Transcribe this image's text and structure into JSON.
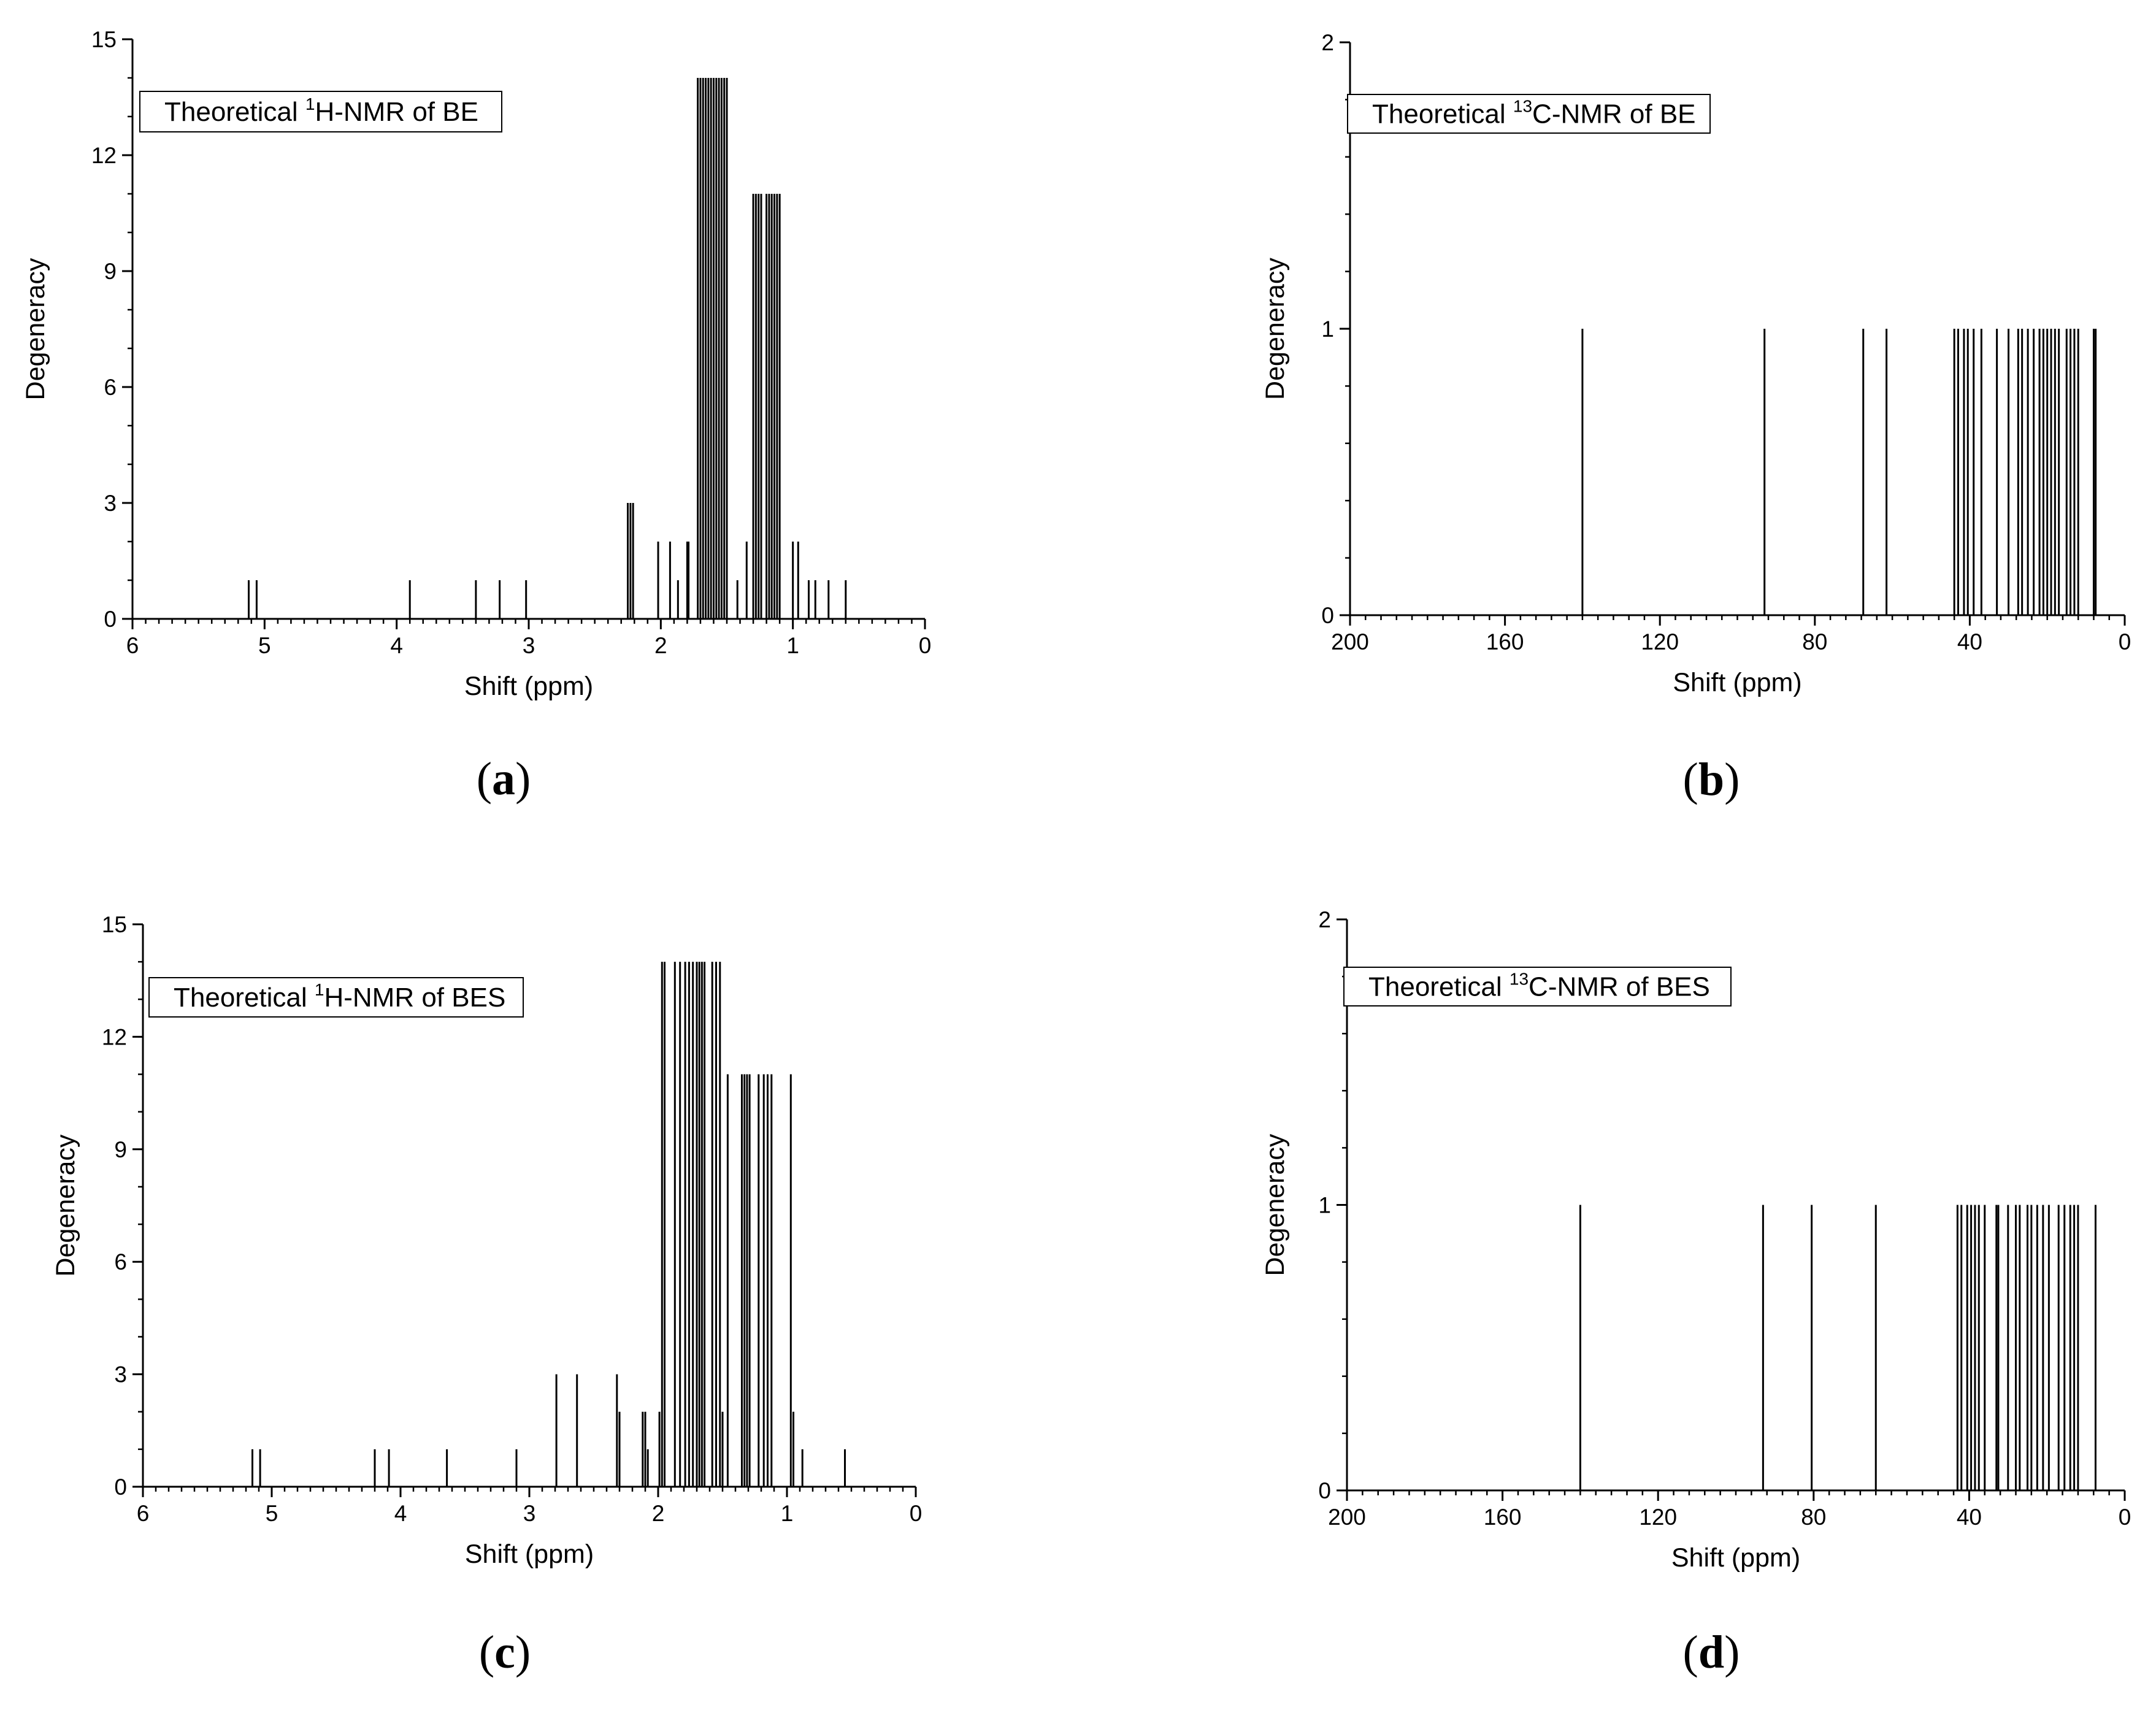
{
  "chart_data": [
    {
      "type": "bar",
      "panel_label": "(a)",
      "legend": {
        "prefix": "Theoretical ",
        "sup": "1",
        "suffix": "H-NMR of BE"
      },
      "xlabel": "Shift (ppm)",
      "ylabel": "Degeneracy",
      "xlim": [
        6,
        0
      ],
      "ylim": [
        0,
        15
      ],
      "xticks": [
        6,
        5,
        4,
        3,
        2,
        1,
        0
      ],
      "yticks": [
        0,
        3,
        6,
        9,
        12,
        15
      ],
      "x_minor_step": 0.1,
      "y_minor_step": 1,
      "grid": false,
      "peaks": [
        {
          "x": 5.12,
          "y": 1
        },
        {
          "x": 5.06,
          "y": 1
        },
        {
          "x": 3.9,
          "y": 1
        },
        {
          "x": 3.4,
          "y": 1
        },
        {
          "x": 3.22,
          "y": 1
        },
        {
          "x": 3.02,
          "y": 1
        },
        {
          "x": 2.25,
          "y": 3
        },
        {
          "x": 2.23,
          "y": 3
        },
        {
          "x": 2.21,
          "y": 3
        },
        {
          "x": 2.02,
          "y": 2
        },
        {
          "x": 1.93,
          "y": 2
        },
        {
          "x": 1.87,
          "y": 1
        },
        {
          "x": 1.8,
          "y": 2
        },
        {
          "x": 1.79,
          "y": 2
        },
        {
          "x": 1.72,
          "y": 14
        },
        {
          "x": 1.7,
          "y": 14
        },
        {
          "x": 1.68,
          "y": 14
        },
        {
          "x": 1.66,
          "y": 14
        },
        {
          "x": 1.64,
          "y": 14
        },
        {
          "x": 1.62,
          "y": 14
        },
        {
          "x": 1.6,
          "y": 14
        },
        {
          "x": 1.58,
          "y": 14
        },
        {
          "x": 1.56,
          "y": 14
        },
        {
          "x": 1.54,
          "y": 14
        },
        {
          "x": 1.52,
          "y": 14
        },
        {
          "x": 1.5,
          "y": 14
        },
        {
          "x": 1.42,
          "y": 1
        },
        {
          "x": 1.35,
          "y": 2
        },
        {
          "x": 1.3,
          "y": 11
        },
        {
          "x": 1.28,
          "y": 11
        },
        {
          "x": 1.26,
          "y": 11
        },
        {
          "x": 1.24,
          "y": 11
        },
        {
          "x": 1.2,
          "y": 11
        },
        {
          "x": 1.18,
          "y": 11
        },
        {
          "x": 1.16,
          "y": 11
        },
        {
          "x": 1.14,
          "y": 11
        },
        {
          "x": 1.12,
          "y": 11
        },
        {
          "x": 1.1,
          "y": 11
        },
        {
          "x": 1.0,
          "y": 2
        },
        {
          "x": 0.96,
          "y": 2
        },
        {
          "x": 0.88,
          "y": 1
        },
        {
          "x": 0.83,
          "y": 1
        },
        {
          "x": 0.73,
          "y": 1
        },
        {
          "x": 0.6,
          "y": 1
        }
      ]
    },
    {
      "type": "bar",
      "panel_label": "(b)",
      "legend": {
        "prefix": "Theoretical ",
        "sup": "13",
        "suffix": "C-NMR of BE"
      },
      "xlabel": "Shift (ppm)",
      "ylabel": "Degeneracy",
      "xlim": [
        200,
        0
      ],
      "ylim": [
        0,
        2
      ],
      "xticks": [
        200,
        160,
        120,
        80,
        40,
        0
      ],
      "yticks": [
        0,
        1,
        2
      ],
      "x_minor_step": 4,
      "y_minor_step": 0.2,
      "grid": false,
      "peaks": [
        {
          "x": 140,
          "y": 1
        },
        {
          "x": 93,
          "y": 1
        },
        {
          "x": 67.5,
          "y": 1
        },
        {
          "x": 61.5,
          "y": 1
        },
        {
          "x": 44,
          "y": 1
        },
        {
          "x": 43,
          "y": 1
        },
        {
          "x": 41.5,
          "y": 1
        },
        {
          "x": 40.5,
          "y": 1
        },
        {
          "x": 39,
          "y": 1
        },
        {
          "x": 37,
          "y": 1
        },
        {
          "x": 33,
          "y": 1
        },
        {
          "x": 30,
          "y": 1
        },
        {
          "x": 27.5,
          "y": 1
        },
        {
          "x": 26.5,
          "y": 1
        },
        {
          "x": 25,
          "y": 1
        },
        {
          "x": 23.5,
          "y": 1
        },
        {
          "x": 22,
          "y": 1
        },
        {
          "x": 21,
          "y": 1
        },
        {
          "x": 20,
          "y": 1
        },
        {
          "x": 19,
          "y": 1
        },
        {
          "x": 18,
          "y": 1
        },
        {
          "x": 17,
          "y": 1
        },
        {
          "x": 15,
          "y": 1
        },
        {
          "x": 14,
          "y": 1
        },
        {
          "x": 13,
          "y": 1
        },
        {
          "x": 12,
          "y": 1
        },
        {
          "x": 8,
          "y": 1
        },
        {
          "x": 7.5,
          "y": 1
        }
      ]
    },
    {
      "type": "bar",
      "panel_label": "(c)",
      "legend": {
        "prefix": "Theoretical ",
        "sup": "1",
        "suffix": "H-NMR of BES"
      },
      "xlabel": "Shift (ppm)",
      "ylabel": "Degeneracy",
      "xlim": [
        6,
        0
      ],
      "ylim": [
        0,
        15
      ],
      "xticks": [
        6,
        5,
        4,
        3,
        2,
        1,
        0
      ],
      "yticks": [
        0,
        3,
        6,
        9,
        12,
        15
      ],
      "x_minor_step": 0.1,
      "y_minor_step": 1,
      "grid": false,
      "peaks": [
        {
          "x": 5.15,
          "y": 1
        },
        {
          "x": 5.09,
          "y": 1
        },
        {
          "x": 4.2,
          "y": 1
        },
        {
          "x": 4.09,
          "y": 1
        },
        {
          "x": 3.64,
          "y": 1
        },
        {
          "x": 3.1,
          "y": 1
        },
        {
          "x": 2.79,
          "y": 3
        },
        {
          "x": 2.63,
          "y": 3
        },
        {
          "x": 2.32,
          "y": 3
        },
        {
          "x": 2.3,
          "y": 2
        },
        {
          "x": 2.12,
          "y": 2
        },
        {
          "x": 2.1,
          "y": 2
        },
        {
          "x": 2.08,
          "y": 1
        },
        {
          "x": 1.99,
          "y": 2
        },
        {
          "x": 1.97,
          "y": 14
        },
        {
          "x": 1.95,
          "y": 14
        },
        {
          "x": 1.87,
          "y": 14
        },
        {
          "x": 1.83,
          "y": 14
        },
        {
          "x": 1.79,
          "y": 14
        },
        {
          "x": 1.76,
          "y": 14
        },
        {
          "x": 1.73,
          "y": 14
        },
        {
          "x": 1.7,
          "y": 14
        },
        {
          "x": 1.68,
          "y": 14
        },
        {
          "x": 1.66,
          "y": 14
        },
        {
          "x": 1.64,
          "y": 14
        },
        {
          "x": 1.58,
          "y": 14
        },
        {
          "x": 1.55,
          "y": 14
        },
        {
          "x": 1.52,
          "y": 14
        },
        {
          "x": 1.5,
          "y": 2
        },
        {
          "x": 1.46,
          "y": 11
        },
        {
          "x": 1.35,
          "y": 11
        },
        {
          "x": 1.33,
          "y": 11
        },
        {
          "x": 1.31,
          "y": 11
        },
        {
          "x": 1.29,
          "y": 11
        },
        {
          "x": 1.22,
          "y": 11
        },
        {
          "x": 1.18,
          "y": 11
        },
        {
          "x": 1.15,
          "y": 11
        },
        {
          "x": 1.12,
          "y": 11
        },
        {
          "x": 0.97,
          "y": 11
        },
        {
          "x": 0.95,
          "y": 2
        },
        {
          "x": 0.88,
          "y": 1
        },
        {
          "x": 0.55,
          "y": 1
        }
      ]
    },
    {
      "type": "bar",
      "panel_label": "(d)",
      "legend": {
        "prefix": "Theoretical ",
        "sup": "13",
        "suffix": "C-NMR of BES"
      },
      "xlabel": "Shift (ppm)",
      "ylabel": "Degeneracy",
      "xlim": [
        200,
        0
      ],
      "ylim": [
        0,
        2
      ],
      "xticks": [
        200,
        160,
        120,
        80,
        40,
        0
      ],
      "yticks": [
        0,
        1,
        2
      ],
      "x_minor_step": 4,
      "y_minor_step": 0.2,
      "grid": false,
      "peaks": [
        {
          "x": 140,
          "y": 1
        },
        {
          "x": 93,
          "y": 1
        },
        {
          "x": 80.5,
          "y": 1
        },
        {
          "x": 64,
          "y": 1
        },
        {
          "x": 43,
          "y": 1
        },
        {
          "x": 42,
          "y": 1
        },
        {
          "x": 40.5,
          "y": 1
        },
        {
          "x": 39.5,
          "y": 1
        },
        {
          "x": 38.5,
          "y": 1
        },
        {
          "x": 37.5,
          "y": 1
        },
        {
          "x": 36,
          "y": 1
        },
        {
          "x": 33,
          "y": 1
        },
        {
          "x": 32.5,
          "y": 1
        },
        {
          "x": 30,
          "y": 1
        },
        {
          "x": 28,
          "y": 1
        },
        {
          "x": 27,
          "y": 1
        },
        {
          "x": 25,
          "y": 1
        },
        {
          "x": 24,
          "y": 1
        },
        {
          "x": 22.5,
          "y": 1
        },
        {
          "x": 21,
          "y": 1
        },
        {
          "x": 19.5,
          "y": 1
        },
        {
          "x": 17,
          "y": 1
        },
        {
          "x": 15.5,
          "y": 1
        },
        {
          "x": 14,
          "y": 1
        },
        {
          "x": 13,
          "y": 1
        },
        {
          "x": 12,
          "y": 1
        },
        {
          "x": 7.5,
          "y": 1
        }
      ]
    }
  ]
}
